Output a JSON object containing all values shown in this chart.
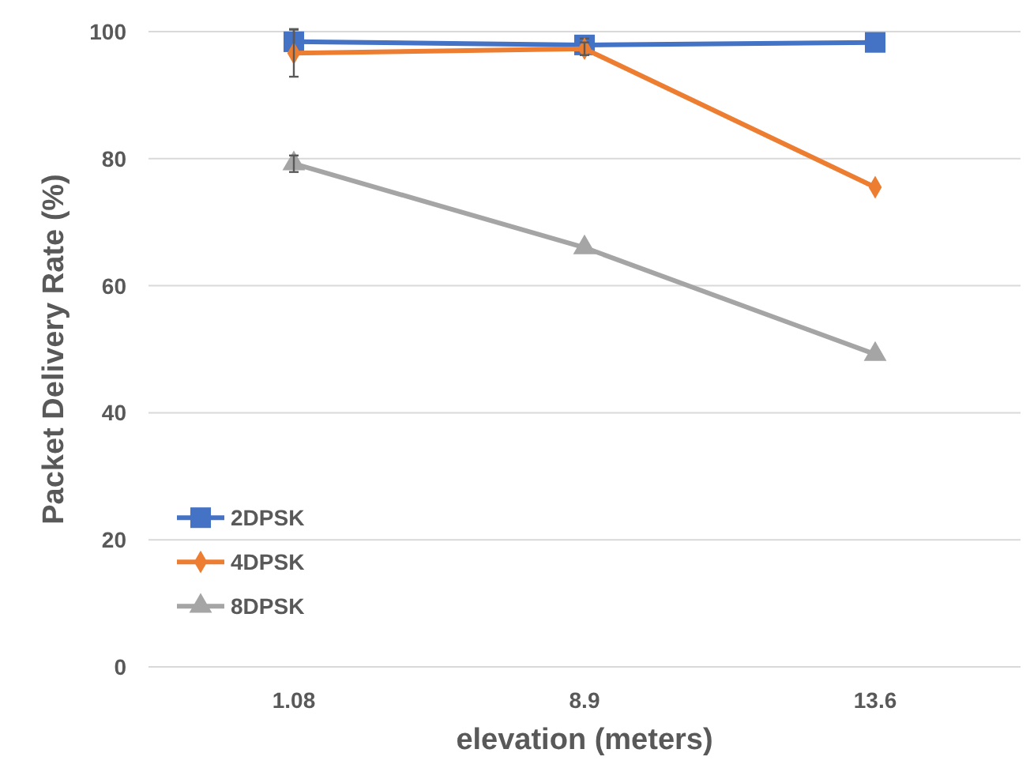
{
  "chart_data": {
    "type": "line",
    "xlabel": "elevation (meters)",
    "ylabel": "Packet Delivery Rate (%)",
    "categories": [
      "1.08",
      "8.9",
      "13.6"
    ],
    "ylim": [
      0,
      100
    ],
    "yticks": [
      0,
      20,
      40,
      60,
      80,
      100
    ],
    "grid": "y",
    "legend": "bottom left",
    "line_style": "solid",
    "series": [
      {
        "name": "2DPSK",
        "color": "#4472c4",
        "marker": "square",
        "values": [
          98.4,
          97.9,
          98.3
        ],
        "errors": [
          2,
          1,
          null
        ]
      },
      {
        "name": "4DPSK",
        "color": "#ed7d31",
        "marker": "diamond",
        "values": [
          96.6,
          97.3,
          75.5
        ],
        "errors": [
          3.7,
          1,
          null
        ]
      },
      {
        "name": "8DPSK",
        "color": "#a5a5a5",
        "marker": "triangle",
        "values": [
          79.2,
          66,
          49.2
        ],
        "errors": [
          1.3,
          null,
          null
        ]
      }
    ]
  }
}
